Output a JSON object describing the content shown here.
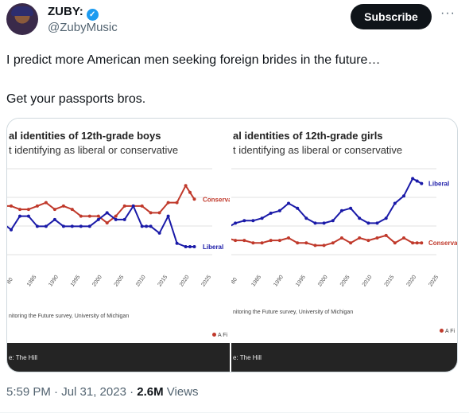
{
  "author": {
    "name": "ZUBY:",
    "handle": "@ZubyMusic"
  },
  "actions": {
    "subscribe_label": "Subscribe",
    "more_label": "···"
  },
  "tweet": {
    "line1": "I predict more American men seeking foreign brides in the future…",
    "line2": "Get your passports bros."
  },
  "meta": {
    "time": "5:59 PM · Jul 31, 2023 · ",
    "views_count": "2.6M",
    "views_label": " Views"
  },
  "media": {
    "boys": {
      "title": "al identities of 12th-grade boys",
      "subtitle": "t identifying as liberal or conservative",
      "source": "nitoring the Future survey, University of Michigan",
      "footer": "e: The Hill",
      "badge": "A Fi"
    },
    "girls": {
      "title": "al identities of 12th-grade girls",
      "subtitle": "t identifying as liberal or conservative",
      "source": "nitoring the Future survey, University of Michigan",
      "footer": "e: The Hill",
      "badge": "A Fi"
    }
  },
  "chart_data": [
    {
      "type": "line",
      "title": "al identities of 12th-grade boys",
      "x_ticks": [
        "80",
        "1985",
        "1990",
        "1995",
        "2000",
        "2005",
        "2010",
        "2015",
        "2020",
        "2025"
      ],
      "series": [
        {
          "name": "Conserva",
          "color": "#c0392b",
          "x": [
            1976,
            1978,
            1980,
            1982,
            1984,
            1986,
            1988,
            1990,
            1992,
            1994,
            1996,
            1998,
            2000,
            2002,
            2004,
            2006,
            2008,
            2010,
            2012,
            2014,
            2016,
            2018,
            2020,
            2021,
            2022
          ],
          "y": [
            21,
            21,
            21,
            20,
            20,
            21,
            22,
            20,
            21,
            20,
            18,
            18,
            18,
            16,
            18,
            21,
            21,
            21,
            19,
            19,
            22,
            22,
            27,
            25,
            23
          ]
        },
        {
          "name": "Liberal",
          "color": "#1a1aa8",
          "x": [
            1976,
            1978,
            1980,
            1982,
            1984,
            1986,
            1988,
            1990,
            1992,
            1994,
            1996,
            1998,
            2000,
            2002,
            2004,
            2006,
            2008,
            2010,
            2011,
            2012,
            2014,
            2016,
            2018,
            2020,
            2021,
            2022
          ],
          "y": [
            19,
            16,
            14,
            18,
            18,
            15,
            15,
            17,
            15,
            15,
            15,
            15,
            17,
            19,
            17,
            17,
            21,
            15,
            15,
            15,
            13,
            18,
            10,
            9,
            9,
            9
          ]
        }
      ]
    },
    {
      "type": "line",
      "title": "al identities of 12th-grade girls",
      "x_ticks": [
        "80",
        "1985",
        "1990",
        "1995",
        "2000",
        "2005",
        "2010",
        "2015",
        "2020",
        "2025"
      ],
      "series": [
        {
          "name": "Liberal",
          "color": "#1a1aa8",
          "x": [
            1976,
            1978,
            1980,
            1982,
            1984,
            1986,
            1988,
            1990,
            1992,
            1994,
            1996,
            1998,
            2000,
            2002,
            2004,
            2006,
            2008,
            2010,
            2012,
            2014,
            2016,
            2018,
            2020,
            2021,
            2022
          ],
          "y": [
            19,
            18,
            20,
            21,
            21,
            22,
            24,
            25,
            28,
            26,
            22,
            20,
            20,
            21,
            25,
            26,
            22,
            20,
            20,
            22,
            28,
            31,
            38,
            37,
            36
          ]
        },
        {
          "name": "Conserva",
          "color": "#c0392b",
          "x": [
            1976,
            1978,
            1980,
            1982,
            1984,
            1986,
            1988,
            1990,
            1992,
            1994,
            1996,
            1998,
            2000,
            2002,
            2004,
            2006,
            2008,
            2010,
            2012,
            2014,
            2016,
            2018,
            2020,
            2021,
            2022
          ],
          "y": [
            13,
            14,
            13,
            13,
            12,
            12,
            13,
            13,
            14,
            12,
            12,
            11,
            11,
            12,
            14,
            12,
            14,
            13,
            14,
            15,
            12,
            14,
            12,
            12,
            12
          ]
        }
      ]
    }
  ]
}
